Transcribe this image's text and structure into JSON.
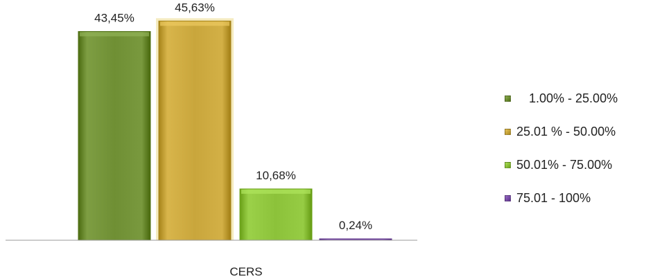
{
  "chart_data": {
    "type": "bar",
    "categories": [
      "CERS"
    ],
    "series": [
      {
        "name": "1.00% - 25.00%",
        "values": [
          43.45
        ],
        "label": "43,45%",
        "color": "#6f8f34"
      },
      {
        "name": "25.01 % - 50.00%",
        "values": [
          45.63
        ],
        "label": "45,63%",
        "color": "#c9a63c"
      },
      {
        "name": "50.01% - 75.00%",
        "values": [
          10.68
        ],
        "label": "10,68%",
        "color": "#8cc23a"
      },
      {
        "name": "75.01 - 100%",
        "values": [
          0.24
        ],
        "label": "0,24%",
        "color": "#7a4ea8"
      }
    ],
    "title": "",
    "xlabel": "",
    "ylabel": "",
    "ylim": [
      0,
      50
    ],
    "legend": "right",
    "grid": false
  }
}
